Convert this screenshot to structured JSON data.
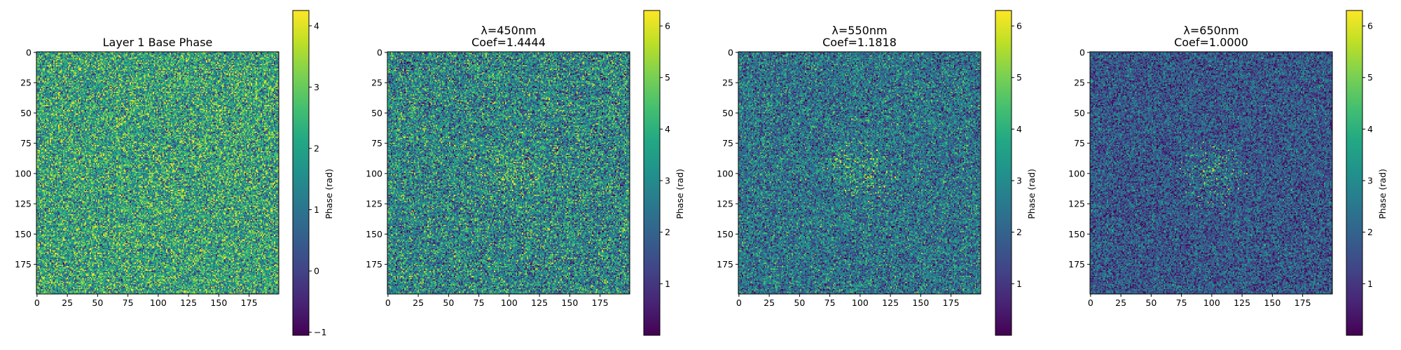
{
  "chart_data": [
    {
      "type": "heatmap",
      "title_lines": [
        "Layer 1 Base Phase"
      ],
      "xlabel": "",
      "ylabel": "",
      "xticks": [
        0,
        25,
        50,
        75,
        100,
        125,
        150,
        175
      ],
      "yticks": [
        0,
        25,
        50,
        75,
        100,
        125,
        150,
        175
      ],
      "extent": [
        0,
        200
      ],
      "colormap": "viridis",
      "colorbar": {
        "label": "Phase (rad)",
        "range": [
          -1.05,
          4.25
        ],
        "ticks": [
          -1,
          0,
          1,
          2,
          3,
          4
        ],
        "tick_labels": [
          "−1",
          "0",
          "1",
          "2",
          "3",
          "4"
        ]
      },
      "field": {
        "mean": 2.0,
        "spread": 1.15,
        "center": [
          100,
          100
        ],
        "center_radius": 22,
        "center_boost": 0.8
      }
    },
    {
      "type": "heatmap",
      "title_lines": [
        "λ=450nm",
        "Coef=1.4444"
      ],
      "xlabel": "",
      "ylabel": "",
      "xticks": [
        0,
        25,
        50,
        75,
        100,
        125,
        150,
        175
      ],
      "yticks": [
        0,
        25,
        50,
        75,
        100,
        125,
        150,
        175
      ],
      "extent": [
        0,
        200
      ],
      "colormap": "viridis",
      "colorbar": {
        "label": "Phase (rad)",
        "range": [
          0,
          6.3
        ],
        "ticks": [
          1,
          2,
          3,
          4,
          5,
          6
        ],
        "tick_labels": [
          "1",
          "2",
          "3",
          "4",
          "5",
          "6"
        ]
      },
      "field": {
        "mean": 2.9,
        "spread": 1.35,
        "center": [
          100,
          100
        ],
        "center_radius": 30,
        "center_boost": 2.6
      }
    },
    {
      "type": "heatmap",
      "title_lines": [
        "λ=550nm",
        "Coef=1.1818"
      ],
      "xlabel": "",
      "ylabel": "",
      "xticks": [
        0,
        25,
        50,
        75,
        100,
        125,
        150,
        175
      ],
      "yticks": [
        0,
        25,
        50,
        75,
        100,
        125,
        150,
        175
      ],
      "extent": [
        0,
        200
      ],
      "colormap": "viridis",
      "colorbar": {
        "label": "Phase (rad)",
        "range": [
          0,
          6.3
        ],
        "ticks": [
          1,
          2,
          3,
          4,
          5,
          6
        ],
        "tick_labels": [
          "1",
          "2",
          "3",
          "4",
          "5",
          "6"
        ]
      },
      "field": {
        "mean": 2.4,
        "spread": 1.15,
        "center": [
          100,
          100
        ],
        "center_radius": 30,
        "center_boost": 3.0
      }
    },
    {
      "type": "heatmap",
      "title_lines": [
        "λ=650nm",
        "Coef=1.0000"
      ],
      "xlabel": "",
      "ylabel": "",
      "xticks": [
        0,
        25,
        50,
        75,
        100,
        125,
        150,
        175
      ],
      "yticks": [
        0,
        25,
        50,
        75,
        100,
        125,
        150,
        175
      ],
      "extent": [
        0,
        200
      ],
      "colormap": "viridis",
      "colorbar": {
        "label": "Phase (rad)",
        "range": [
          0,
          6.3
        ],
        "ticks": [
          1,
          2,
          3,
          4,
          5,
          6
        ],
        "tick_labels": [
          "1",
          "2",
          "3",
          "4",
          "5",
          "6"
        ]
      },
      "field": {
        "mean": 1.7,
        "spread": 0.95,
        "center": [
          100,
          100
        ],
        "center_radius": 30,
        "center_boost": 3.4
      }
    }
  ]
}
